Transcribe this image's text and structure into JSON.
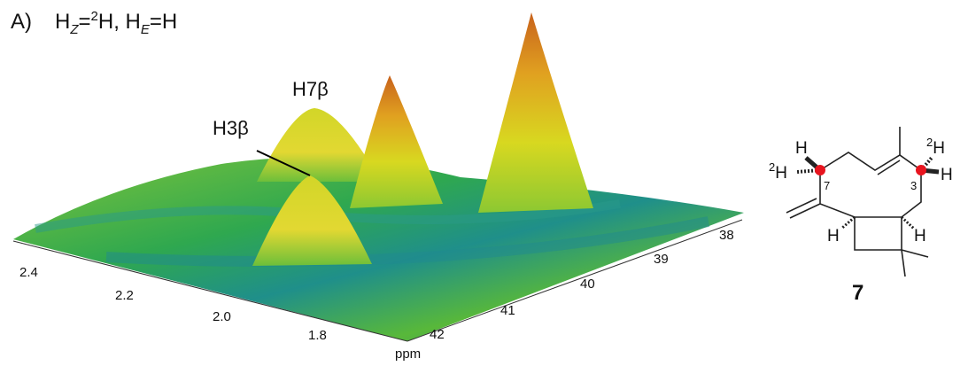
{
  "panel_label": "A)",
  "condition": [
    "H",
    "Z",
    "=",
    "2",
    "H, H",
    "E",
    "=H"
  ],
  "peaks": [
    "H7β",
    "H3β"
  ],
  "axis_1h_ticks": [
    "2.4",
    "2.2",
    "2.0",
    "1.8"
  ],
  "axis_13c_ticks": [
    "42",
    "41",
    "40",
    "39",
    "38"
  ],
  "axis_label": "ppm",
  "structure": {
    "atoms": [
      "H",
      "2",
      "H",
      "7",
      "3",
      "2",
      "H",
      "H",
      "H",
      "H"
    ],
    "compound": "7"
  }
}
